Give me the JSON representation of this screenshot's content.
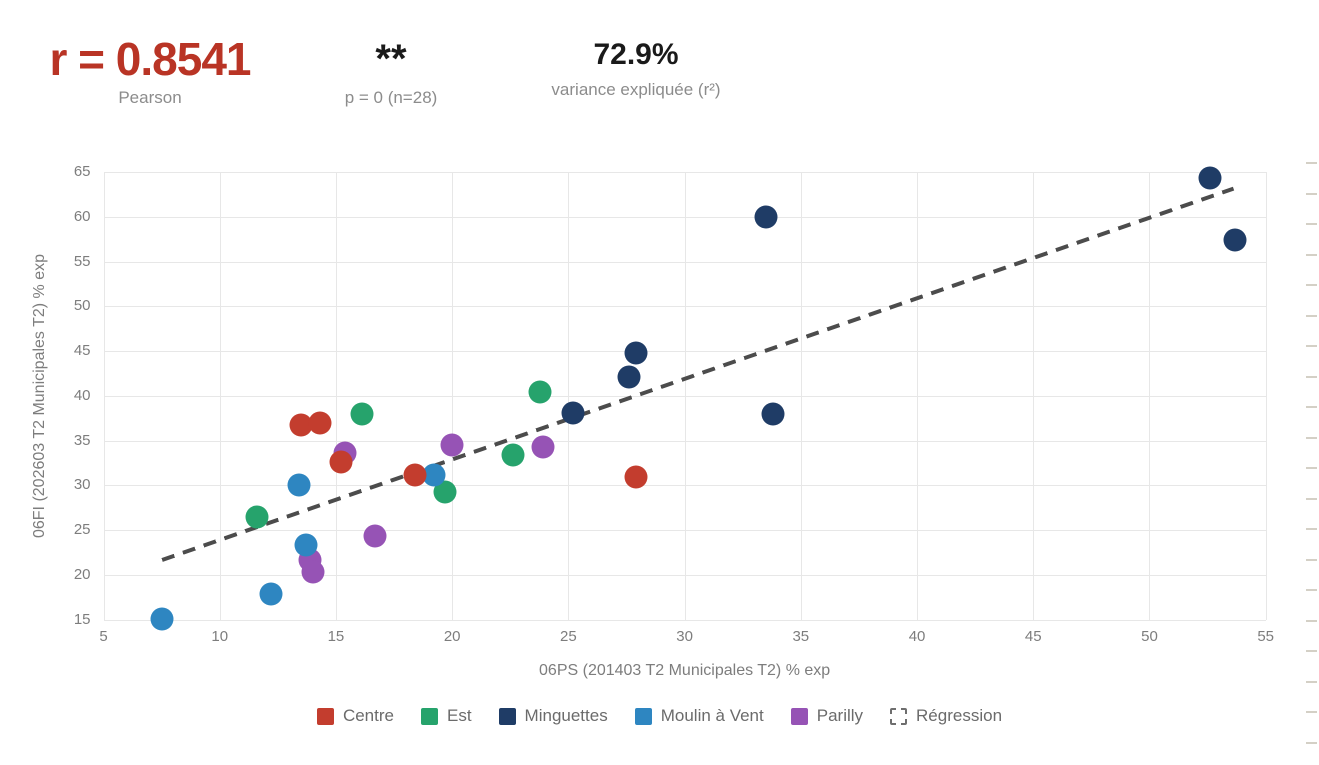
{
  "stats": {
    "pearson_value": "r = 0.8541",
    "pearson_label": "Pearson",
    "significance_stars": "**",
    "significance_detail": "p = 0 (n=28)",
    "variance_value": "72.9%",
    "variance_label": "variance expliquée (r²)"
  },
  "chart_data": {
    "type": "scatter",
    "xlabel": "06PS (201403 T2 Municipales T2) % exp",
    "ylabel": "06FI (202603 T2 Municipales T2) % exp",
    "xlim": [
      5,
      55
    ],
    "ylim": [
      15,
      65
    ],
    "xticks": [
      5,
      10,
      15,
      20,
      25,
      30,
      35,
      40,
      45,
      50,
      55
    ],
    "yticks": [
      15,
      20,
      25,
      30,
      35,
      40,
      45,
      50,
      55,
      60,
      65
    ],
    "grid": true,
    "legend_position": "bottom",
    "series": [
      {
        "name": "Centre",
        "color": "#c33d2e",
        "points": [
          [
            13.5,
            36.7
          ],
          [
            14.3,
            37.0
          ],
          [
            15.2,
            32.6
          ],
          [
            18.4,
            31.2
          ],
          [
            27.9,
            30.9
          ]
        ]
      },
      {
        "name": "Est",
        "color": "#26a36c",
        "points": [
          [
            11.6,
            26.5
          ],
          [
            16.1,
            38.0
          ],
          [
            19.7,
            29.2
          ],
          [
            22.6,
            33.4
          ],
          [
            23.8,
            40.4
          ]
        ]
      },
      {
        "name": "Minguettes",
        "color": "#1f3c66",
        "points": [
          [
            25.2,
            38.1
          ],
          [
            27.6,
            42.1
          ],
          [
            27.9,
            44.8
          ],
          [
            33.5,
            60.0
          ],
          [
            33.8,
            38.0
          ],
          [
            52.6,
            64.3
          ],
          [
            53.7,
            57.4
          ]
        ]
      },
      {
        "name": "Moulin à Vent",
        "color": "#2e86c1",
        "points": [
          [
            7.5,
            15.1
          ],
          [
            12.2,
            17.9
          ],
          [
            13.4,
            30.0
          ],
          [
            13.7,
            23.3
          ],
          [
            19.2,
            31.1
          ]
        ]
      },
      {
        "name": "Parilly",
        "color": "#9653b5",
        "points": [
          [
            13.9,
            21.6
          ],
          [
            14.0,
            20.3
          ],
          [
            15.4,
            33.6
          ],
          [
            16.7,
            24.3
          ],
          [
            20.0,
            34.5
          ],
          [
            23.9,
            34.3
          ]
        ]
      }
    ],
    "draw_order": [
      "Est",
      "Parilly",
      "Minguettes",
      "Moulin à Vent",
      "Centre"
    ],
    "regression": {
      "name": "Régression",
      "color": "#4c4c4c",
      "from": [
        7.5,
        21.9
      ],
      "to": [
        53.6,
        63.4
      ]
    }
  },
  "decor": {
    "right_edge_tick_count": 20,
    "right_edge_tick_color": "#d4d0c6"
  },
  "colors": {
    "stat_red": "#b93425",
    "sub_gray": "#8c8c8c",
    "axis_gray": "#7d7d7d",
    "grid": "#e7e7e7",
    "legend_text": "#6b6b6b"
  }
}
